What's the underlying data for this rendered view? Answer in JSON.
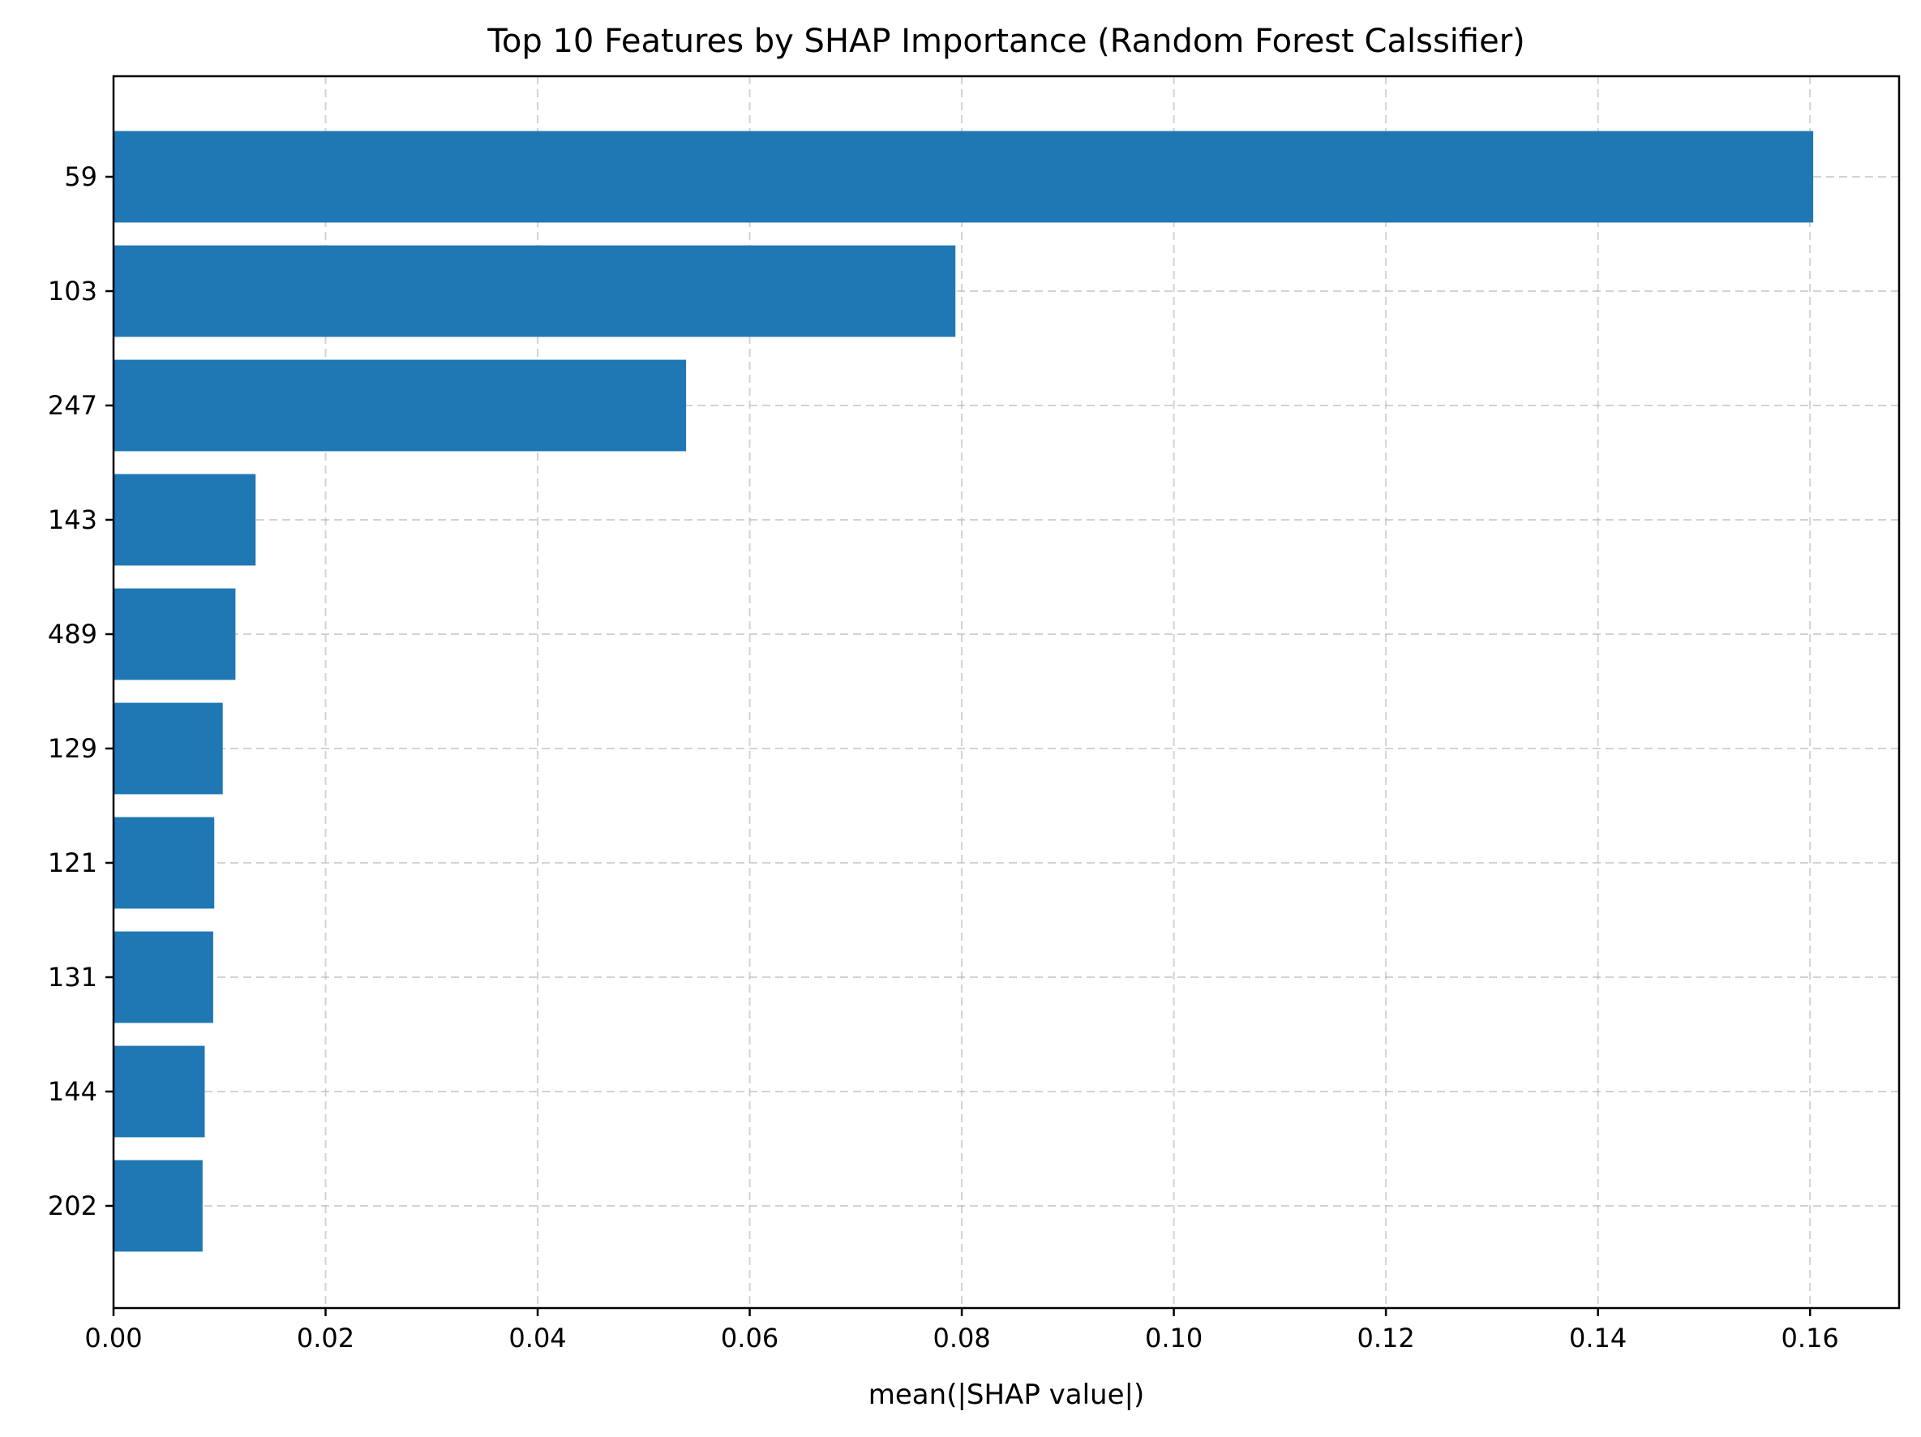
{
  "chart_data": {
    "type": "bar",
    "orientation": "horizontal",
    "title": "Top 10 Features by SHAP Importance (Random Forest Calssifier)",
    "xlabel": "mean(|SHAP value|)",
    "ylabel": "",
    "categories": [
      "59",
      "103",
      "247",
      "143",
      "489",
      "129",
      "121",
      "131",
      "144",
      "202"
    ],
    "values": [
      0.1603,
      0.0794,
      0.054,
      0.0134,
      0.0115,
      0.0103,
      0.0095,
      0.0094,
      0.0086,
      0.0084
    ],
    "xlim": [
      0,
      0.1684
    ],
    "xticks": [
      "0.00",
      "0.02",
      "0.04",
      "0.06",
      "0.08",
      "0.10",
      "0.12",
      "0.14",
      "0.16"
    ],
    "grid": true,
    "bar_color": "#1f77b4"
  }
}
